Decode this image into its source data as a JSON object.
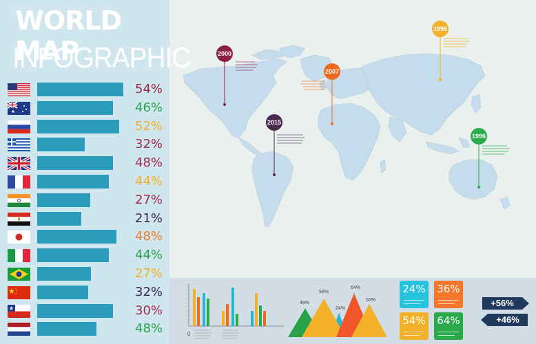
{
  "title": {
    "line1": "WORLD MAP",
    "line2": "INFOGRAPHIC"
  },
  "rows": [
    {
      "country": "usa-flag-icon",
      "bar": 0.98,
      "pct": "54%",
      "color": "#a12a4b"
    },
    {
      "country": "australia-flag-icon",
      "bar": 0.86,
      "pct": "46%",
      "color": "#2aa24a"
    },
    {
      "country": "russia-flag-icon",
      "bar": 0.93,
      "pct": "52%",
      "color": "#f0b12a"
    },
    {
      "country": "greece-flag-icon",
      "bar": 0.54,
      "pct": "32%",
      "color": "#a12a4b"
    },
    {
      "country": "uk-flag-icon",
      "bar": 0.86,
      "pct": "48%",
      "color": "#a12a4b"
    },
    {
      "country": "france-flag-icon",
      "bar": 0.81,
      "pct": "44%",
      "color": "#f0b12a"
    },
    {
      "country": "india-flag-icon",
      "bar": 0.6,
      "pct": "27%",
      "color": "#a12a4b"
    },
    {
      "country": "egypt-flag-icon",
      "bar": 0.5,
      "pct": "21%",
      "color": "#3a2a50"
    },
    {
      "country": "japan-flag-icon",
      "bar": 0.9,
      "pct": "48%",
      "color": "#f07a2a"
    },
    {
      "country": "italy-flag-icon",
      "bar": 0.81,
      "pct": "44%",
      "color": "#2aa24a"
    },
    {
      "country": "brazil-flag-icon",
      "bar": 0.61,
      "pct": "27%",
      "color": "#f0b12a"
    },
    {
      "country": "china-flag-icon",
      "bar": 0.58,
      "pct": "32%",
      "color": "#3a2a50"
    },
    {
      "country": "chile-flag-icon",
      "bar": 0.86,
      "pct": "30%",
      "color": "#a12a4b"
    },
    {
      "country": "netherlands-flag-icon",
      "bar": 0.67,
      "pct": "48%",
      "color": "#2aa24a"
    }
  ],
  "pins": [
    {
      "year": "2000",
      "color": "#8c1f45"
    },
    {
      "year": "2007",
      "color": "#f06a1e"
    },
    {
      "year": "1996",
      "color": "#f3b12a",
      "id": "asia"
    },
    {
      "year": "2015",
      "color": "#4b2a52"
    },
    {
      "year": "1996",
      "color": "#2aaa4a",
      "id": "australia"
    }
  ],
  "triangles": [
    {
      "label": "48%",
      "color": "#2aa24a"
    },
    {
      "label": "56%",
      "color": "#f3b12a"
    },
    {
      "label": "24%",
      "color": "#27b8cf"
    },
    {
      "label": "64%",
      "color": "#f0562a"
    },
    {
      "label": "50%",
      "color": "#f3b12a"
    }
  ],
  "cards": [
    {
      "value": "24%",
      "color": "#27c3dc"
    },
    {
      "value": "36%",
      "color": "#f5772c"
    },
    {
      "value": "54%",
      "color": "#f3b12a"
    },
    {
      "value": "64%",
      "color": "#2aaa4a"
    }
  ],
  "tags": {
    "up": "+56%",
    "down": "+46%"
  },
  "bar_chart": {
    "y_zero": "0"
  }
}
